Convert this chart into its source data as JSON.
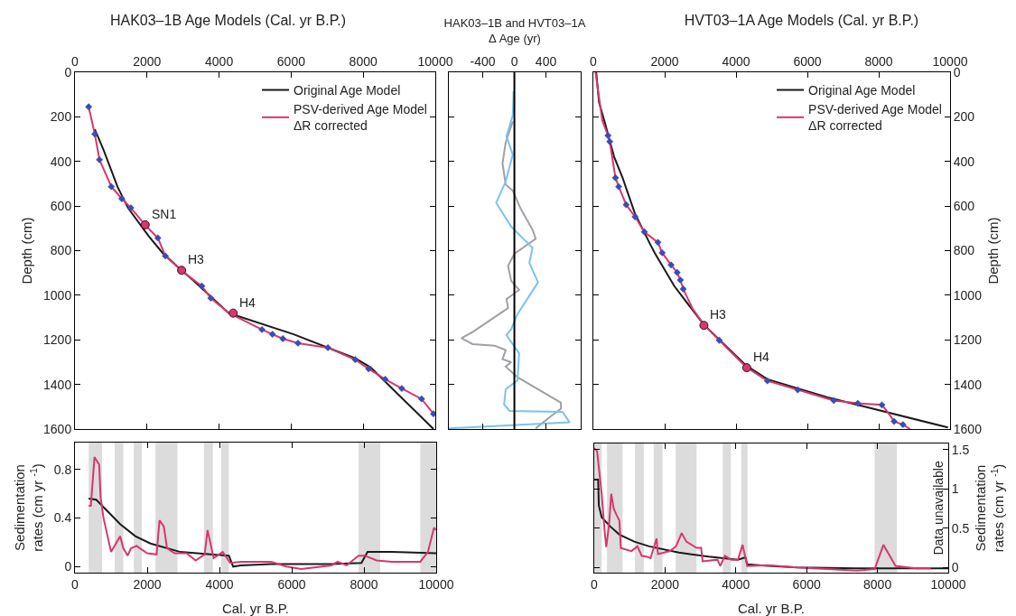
{
  "chart_data": [
    {
      "type": "line",
      "title": "HAK03–1B Age Models (Cal. yr B.P.)",
      "ylabel": "Depth (cm)",
      "xlim": [
        0,
        10000
      ],
      "xticks": [
        0,
        2000,
        4000,
        6000,
        8000,
        10000
      ],
      "ylim": [
        1600,
        0
      ],
      "yticks": [
        0,
        200,
        400,
        600,
        800,
        1000,
        1200,
        1400,
        1600
      ],
      "legend": "top right",
      "series": [
        {
          "name": "Original Age Model",
          "color": "#1a1a1a",
          "type": "line",
          "x": [
            550,
            800,
            1180,
            1470,
            2050,
            2430,
            2930,
            3270,
            4270,
            6070,
            7780,
            8200,
            9950
          ],
          "values": [
            256,
            351,
            513,
            608,
            736,
            810,
            884,
            932,
            1080,
            1175,
            1283,
            1323,
            1600
          ]
        },
        {
          "name": "PSV-derived Age Model\nΔR corrected",
          "color": "#d9366e",
          "type": "line",
          "x": [
            380,
            550,
            680,
            1010,
            1300,
            1550,
            1970,
            2300,
            2510,
            2970,
            3520,
            3770,
            4270,
            5190,
            5480,
            5770,
            6190,
            7020,
            7780,
            8150,
            8610,
            9070,
            9620,
            9950
          ],
          "values": [
            155,
            277,
            392,
            513,
            567,
            608,
            689,
            743,
            824,
            891,
            959,
            1013,
            1080,
            1154,
            1175,
            1195,
            1215,
            1235,
            1289,
            1330,
            1377,
            1418,
            1465,
            1532
          ]
        },
        {
          "color": "#3a4db5",
          "type": "scatter",
          "marker": "diamond",
          "x": [
            380,
            550,
            680,
            1010,
            1300,
            1550,
            2300,
            2510,
            3520,
            3770,
            5190,
            5480,
            5770,
            6190,
            7020,
            7780,
            8150,
            8610,
            9070,
            9620,
            9950
          ],
          "values": [
            155,
            277,
            392,
            513,
            567,
            608,
            743,
            824,
            959,
            1013,
            1154,
            1175,
            1195,
            1215,
            1235,
            1289,
            1330,
            1377,
            1418,
            1465,
            1532
          ]
        },
        {
          "color": "#d9366e",
          "type": "scatter",
          "marker": "circle",
          "x": [
            1950,
            2960,
            4390
          ],
          "values": [
            684,
            888,
            1080
          ]
        }
      ],
      "annotations": [
        {
          "text": "SN1",
          "x": 1950,
          "y": 684
        },
        {
          "text": "H3",
          "x": 2960,
          "y": 888
        },
        {
          "text": "H4",
          "x": 4390,
          "y": 1080
        }
      ]
    },
    {
      "type": "line",
      "title": "HAK03–1B and HVT03–1A\nΔ Age (yr)",
      "xlim": [
        -830,
        840
      ],
      "xticks": [
        -400,
        0,
        400
      ],
      "ylim": [
        1600,
        0
      ],
      "yticks": [
        0,
        200,
        400,
        600,
        800,
        1000,
        1200,
        1400,
        1600
      ],
      "tick_labels": "x",
      "series": [
        {
          "color": "#9fa0a8",
          "type": "line",
          "x": [
            -20,
            -110,
            -150,
            -110,
            -20,
            80,
            230,
            270,
            0,
            -80,
            -40,
            60,
            -100,
            -80,
            -190,
            -530,
            -670,
            -530,
            -250,
            -110,
            -150,
            -40,
            -110,
            40,
            590,
            590,
            460,
            270
          ],
          "values": [
            220,
            315,
            409,
            504,
            531,
            612,
            706,
            747,
            814,
            868,
            936,
            976,
            1017,
            1057,
            1084,
            1165,
            1192,
            1219,
            1226,
            1246,
            1287,
            1300,
            1320,
            1368,
            1482,
            1509,
            1543,
            1597
          ]
        },
        {
          "color": "#7dc2ea",
          "type": "line",
          "x": [
            -10,
            -20,
            -100,
            -20,
            -110,
            -230,
            -40,
            230,
            190,
            300,
            40,
            -40,
            -100,
            60,
            40,
            -110,
            -130,
            -60,
            610,
            700,
            -830
          ],
          "values": [
            85,
            193,
            288,
            369,
            490,
            585,
            693,
            787,
            855,
            942,
            1084,
            1152,
            1179,
            1260,
            1381,
            1422,
            1489,
            1519,
            1523,
            1570,
            1597
          ]
        }
      ],
      "ref_lines": [
        {
          "axis": "x",
          "value": 0,
          "color": "#000000"
        }
      ]
    },
    {
      "type": "line",
      "title": "HVT03–1A Age Models (Cal. yr B.P.)",
      "ylabel": "Depth (cm)",
      "xlim": [
        0,
        10000
      ],
      "xticks": [
        0,
        2000,
        4000,
        6000,
        8000,
        10000
      ],
      "ylim": [
        1600,
        0
      ],
      "yticks": [
        0,
        200,
        400,
        600,
        800,
        1000,
        1200,
        1400,
        1600
      ],
      "legend": "top right",
      "series": [
        {
          "name": "Original Age Model",
          "color": "#1a1a1a",
          "type": "line",
          "x": [
            80,
            160,
            330,
            580,
            820,
            920,
            1170,
            1590,
            1720,
            2270,
            2780,
            3110,
            4290,
            4880,
            6570,
            7410,
            9940
          ],
          "values": [
            0,
            135,
            230,
            378,
            473,
            520,
            635,
            770,
            810,
            959,
            1066,
            1134,
            1316,
            1377,
            1458,
            1492,
            1593
          ]
        },
        {
          "name": "PSV-derived Age Model\nΔR corrected",
          "color": "#d9366e",
          "type": "line",
          "x": [
            60,
            250,
            410,
            460,
            620,
            710,
            920,
            1170,
            1430,
            1810,
            1930,
            2180,
            2350,
            2440,
            2520,
            2780,
            3110,
            3530,
            4290,
            4880,
            5730,
            6740,
            7410,
            8090,
            8260,
            8430,
            8680,
            8880
          ],
          "values": [
            0,
            216,
            284,
            311,
            473,
            513,
            594,
            648,
            716,
            763,
            810,
            864,
            898,
            932,
            972,
            1060,
            1134,
            1202,
            1323,
            1384,
            1424,
            1472,
            1485,
            1492,
            1526,
            1566,
            1580,
            1600
          ]
        },
        {
          "color": "#3a4db5",
          "type": "scatter",
          "marker": "diamond",
          "x": [
            410,
            460,
            620,
            710,
            920,
            1170,
            1430,
            1810,
            1930,
            2180,
            2350,
            2440,
            2520,
            3530,
            4880,
            5730,
            6740,
            7410,
            8090,
            8430,
            8680
          ],
          "values": [
            284,
            311,
            473,
            513,
            594,
            648,
            716,
            763,
            810,
            864,
            898,
            932,
            972,
            1202,
            1384,
            1424,
            1472,
            1485,
            1492,
            1566,
            1580
          ]
        },
        {
          "color": "#d9366e",
          "type": "scatter",
          "marker": "circle",
          "x": [
            3100,
            4300
          ],
          "values": [
            1135,
            1325
          ]
        }
      ],
      "annotations": [
        {
          "text": "H3",
          "x": 3100,
          "y": 1135
        },
        {
          "text": "H4",
          "x": 4300,
          "y": 1325
        }
      ]
    },
    {
      "type": "line",
      "xlabel": "Cal. yr B.P.",
      "ylabel": "Sedimentation\nrates (cm yr $^{-1}$)",
      "xlim": [
        0,
        10000
      ],
      "xticks": [
        0,
        2000,
        4000,
        6000,
        8000,
        10000
      ],
      "ylim": [
        -0.05,
        1.02
      ],
      "yticks": [
        0,
        0.4,
        0.8
      ],
      "series": [
        {
          "color": "#1a1a1a",
          "type": "line",
          "x": [
            380,
            590,
            920,
            1250,
            1670,
            2090,
            2920,
            3760,
            4260,
            4380,
            4590,
            5430,
            6260,
            7100,
            7930,
            8100,
            8770,
            10000
          ],
          "values": [
            0.56,
            0.55,
            0.45,
            0.35,
            0.25,
            0.19,
            0.12,
            0.1,
            0.09,
            0,
            0.01,
            0.02,
            0.02,
            0.02,
            0.03,
            0.12,
            0.12,
            0.11
          ]
        },
        {
          "color": "#d9366e",
          "type": "line",
          "x": [
            380,
            440,
            540,
            670,
            710,
            790,
            1000,
            1250,
            1340,
            1460,
            1550,
            1710,
            1800,
            2000,
            2260,
            2340,
            2460,
            2550,
            2760,
            3090,
            3340,
            3590,
            3670,
            3840,
            4090,
            4300,
            4590,
            5430,
            5850,
            6260,
            7100,
            7270,
            7520,
            7850,
            8020,
            8350,
            8770,
            9560,
            9770,
            9940,
            10000
          ],
          "values": [
            0.5,
            0.5,
            0.9,
            0.84,
            0.57,
            0.4,
            0.12,
            0.25,
            0.15,
            0.09,
            0.15,
            0.17,
            0.15,
            0.11,
            0.1,
            0.38,
            0.33,
            0.15,
            0.11,
            0.11,
            0.05,
            0.1,
            0.3,
            0.07,
            0.12,
            0.03,
            0.04,
            0.04,
            0,
            -0.02,
            0.01,
            0.04,
            0.01,
            0.09,
            0.09,
            0.05,
            0.04,
            0.04,
            0.12,
            0.32,
            0.3
          ]
        }
      ],
      "bands": [
        {
          "axis": "x",
          "from": 380,
          "to": 750,
          "color": "#c4c4c4"
        },
        {
          "axis": "x",
          "from": 1100,
          "to": 1340,
          "color": "#c4c4c4"
        },
        {
          "axis": "x",
          "from": 1630,
          "to": 1850,
          "color": "#c4c4c4"
        },
        {
          "axis": "x",
          "from": 2230,
          "to": 2840,
          "color": "#c4c4c4"
        },
        {
          "axis": "x",
          "from": 3570,
          "to": 3820,
          "color": "#c4c4c4"
        },
        {
          "axis": "x",
          "from": 4050,
          "to": 4260,
          "color": "#c4c4c4"
        },
        {
          "axis": "x",
          "from": 7850,
          "to": 8450,
          "color": "#c4c4c4"
        },
        {
          "axis": "x",
          "from": 9560,
          "to": 10000,
          "color": "#c4c4c4"
        }
      ]
    },
    {
      "type": "line",
      "xlabel": "Cal. yr B.P.",
      "ylabel": "Sedimentation\nrates (cm yr $^{-1}$)",
      "xlim": [
        0,
        10000
      ],
      "xticks": [
        0,
        2000,
        4000,
        6000,
        8000,
        10000
      ],
      "ylim": [
        -0.065,
        1.58
      ],
      "yticks": [
        0,
        0.5,
        1,
        1.5
      ],
      "series": [
        {
          "color": "#1a1a1a",
          "type": "line",
          "x": [
            0,
            110,
            130,
            210,
            460,
            710,
            1130,
            1550,
            2390,
            3230,
            4060,
            4270,
            4320,
            4900,
            5740,
            7420,
            10000
          ],
          "values": [
            1.12,
            1.12,
            0.79,
            0.64,
            0.52,
            0.42,
            0.33,
            0.27,
            0.19,
            0.14,
            0.1,
            0.13,
            0.04,
            0.02,
            0,
            -0.01,
            -0.01
          ]
        },
        {
          "color": "#d9366e",
          "type": "line",
          "x": [
            0,
            80,
            210,
            290,
            340,
            420,
            480,
            550,
            630,
            710,
            750,
            1050,
            1220,
            1340,
            1470,
            1590,
            1760,
            1800,
            2140,
            2310,
            2470,
            2600,
            2890,
            3020,
            3060,
            3480,
            3560,
            3690,
            3860,
            4060,
            4190,
            4320,
            4900,
            5740,
            7420,
            7920,
            8170,
            8510,
            9090,
            9510
          ],
          "values": [
            1.52,
            1.48,
            0.94,
            0.48,
            0.26,
            0.56,
            0.94,
            0.75,
            0.67,
            0.6,
            0.25,
            0.21,
            0.27,
            0.15,
            0.14,
            0.12,
            0.37,
            0.17,
            0.21,
            0.27,
            0.44,
            0.33,
            0.25,
            0.25,
            0.08,
            0.1,
            0.02,
            0.15,
            0.1,
            0.1,
            0.29,
            0.02,
            0.03,
            0,
            -0.04,
            -0.02,
            0.29,
            0.02,
            -0.01,
            -0.01
          ]
        }
      ],
      "bands": [
        {
          "axis": "x",
          "from": 0,
          "to": 210,
          "color": "#c4c4c4"
        },
        {
          "axis": "x",
          "from": 360,
          "to": 800,
          "color": "#c4c4c4"
        },
        {
          "axis": "x",
          "from": 1150,
          "to": 1400,
          "color": "#c4c4c4"
        },
        {
          "axis": "x",
          "from": 1680,
          "to": 1930,
          "color": "#c4c4c4"
        },
        {
          "axis": "x",
          "from": 2300,
          "to": 2890,
          "color": "#c4c4c4"
        },
        {
          "axis": "x",
          "from": 3630,
          "to": 3860,
          "color": "#c4c4c4"
        },
        {
          "axis": "x",
          "from": 4150,
          "to": 4330,
          "color": "#c4c4c4"
        },
        {
          "axis": "x",
          "from": 7920,
          "to": 8550,
          "color": "#c4c4c4"
        }
      ],
      "annotations": [
        "Data unavailable"
      ]
    }
  ]
}
